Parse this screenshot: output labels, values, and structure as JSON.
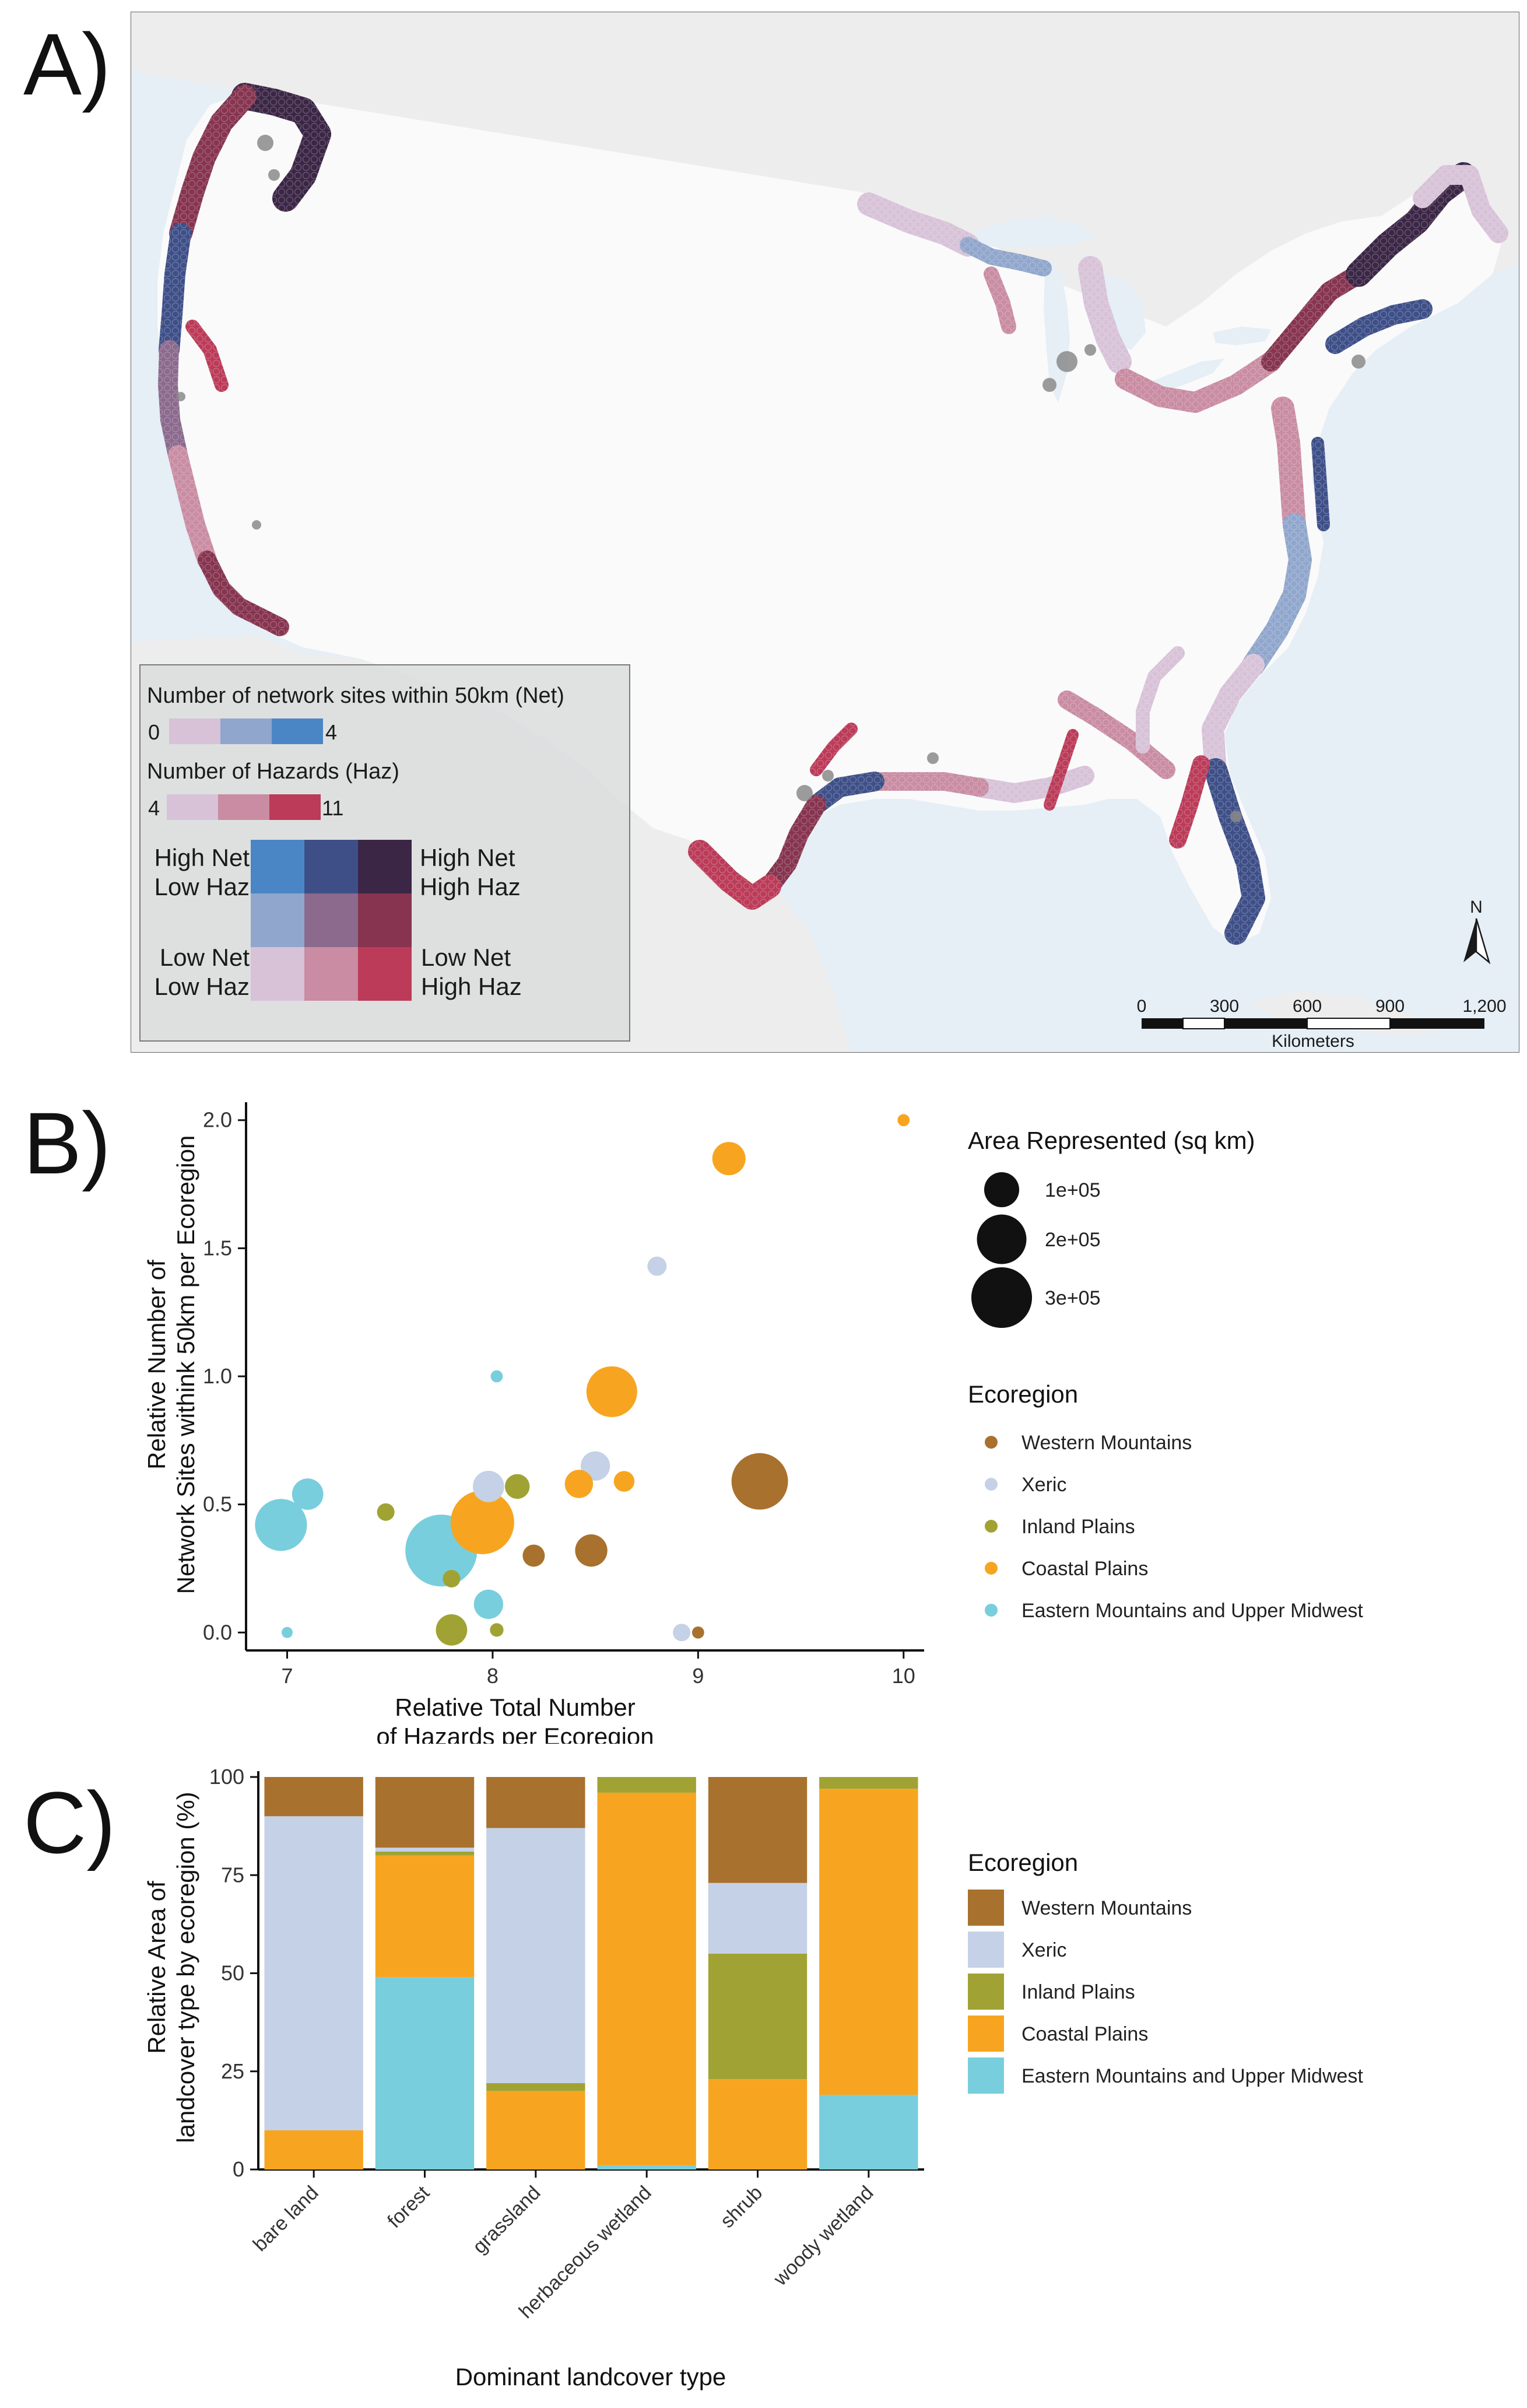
{
  "panels": {
    "a": "A)",
    "b": "B)",
    "c": "C)"
  },
  "colors": {
    "western": "#A8712E",
    "xeric": "#C5D1E6",
    "inland": "#A0A333",
    "coastal": "#F7A520",
    "eastern": "#78CEDC",
    "ocean": "#E6EEF6",
    "land": "#EEEEEE",
    "us_land": "#FAFAFA",
    "grid_cell_gray": "#8A8A8A",
    "bivariate": {
      "low_net_low_haz": "#D7C2D8",
      "low_net_mid_haz": "#C98CA2",
      "low_net_high_haz": "#BB3B58",
      "mid_net_low_haz": "#90A6CC",
      "mid_net_mid_haz": "#8B6A8E",
      "mid_net_high_haz": "#86344F",
      "high_net_low_haz": "#4A86C6",
      "high_net_mid_haz": "#3E4F88",
      "high_net_high_haz": "#3B2646"
    }
  },
  "map": {
    "legend": {
      "net_title": "Number of network sites within 50km (Net)",
      "net_min": "0",
      "net_max": "4",
      "haz_title": "Number of Hazards (Haz)",
      "haz_min": "4",
      "haz_max": "11",
      "high_net_low_haz_1": "High Net",
      "high_net_low_haz_2": "Low Haz",
      "high_net_high_haz_1": "High Net",
      "high_net_high_haz_2": "High Haz",
      "low_net_low_haz_1": "Low Net",
      "low_net_low_haz_2": "Low Haz",
      "low_net_high_haz_1": "Low Net",
      "low_net_high_haz_2": "High Haz"
    },
    "north_arrow_label": "N",
    "scale_bar": {
      "ticks": [
        "0",
        "300",
        "600",
        "900",
        "1,200"
      ],
      "unit": "Kilometers"
    }
  },
  "chart_data": [
    {
      "type": "scatter",
      "panel": "B",
      "xlabel": "Relative Total Number\nof Hazards per Ecoregion",
      "ylabel": "Relative Number of\nNetwork Sites withink 50km per Ecoregion",
      "xlim": [
        6.8,
        10.1
      ],
      "ylim": [
        -0.07,
        2.07
      ],
      "x_ticks": [
        7,
        8,
        9,
        10
      ],
      "y_ticks": [
        "0.0",
        "0.5",
        "1.0",
        "1.5",
        "2.0"
      ],
      "size_legend": {
        "title": "Area Represented (sq km)",
        "entries": [
          {
            "label": "1e+05",
            "value": 100000
          },
          {
            "label": "2e+05",
            "value": 200000
          },
          {
            "label": "3e+05",
            "value": 300000
          }
        ]
      },
      "color_legend": {
        "title": "Ecoregion",
        "entries": [
          "Western Mountains",
          "Xeric",
          "Inland Plains",
          "Coastal Plains",
          "Eastern Mountains and Upper Midwest"
        ]
      },
      "points": [
        {
          "series": "Western Mountains",
          "x": 9.3,
          "y": 0.59,
          "area": 260000
        },
        {
          "series": "Western Mountains",
          "x": 8.48,
          "y": 0.32,
          "area": 85000
        },
        {
          "series": "Western Mountains",
          "x": 8.2,
          "y": 0.3,
          "area": 40000
        },
        {
          "series": "Western Mountains",
          "x": 9.0,
          "y": 0.0,
          "area": 12000
        },
        {
          "series": "Xeric",
          "x": 8.8,
          "y": 1.43,
          "area": 30000
        },
        {
          "series": "Xeric",
          "x": 8.5,
          "y": 0.65,
          "area": 70000
        },
        {
          "series": "Xeric",
          "x": 7.98,
          "y": 0.57,
          "area": 80000
        },
        {
          "series": "Xeric",
          "x": 8.92,
          "y": 0.0,
          "area": 25000
        },
        {
          "series": "Inland Plains",
          "x": 7.48,
          "y": 0.47,
          "area": 25000
        },
        {
          "series": "Inland Plains",
          "x": 8.12,
          "y": 0.57,
          "area": 50000
        },
        {
          "series": "Inland Plains",
          "x": 7.8,
          "y": 0.21,
          "area": 25000
        },
        {
          "series": "Inland Plains",
          "x": 7.8,
          "y": 0.01,
          "area": 80000
        },
        {
          "series": "Inland Plains",
          "x": 8.02,
          "y": 0.01,
          "area": 15000
        },
        {
          "series": "Coastal Plains",
          "x": 10.0,
          "y": 2.0,
          "area": 12000
        },
        {
          "series": "Coastal Plains",
          "x": 9.15,
          "y": 1.85,
          "area": 90000
        },
        {
          "series": "Coastal Plains",
          "x": 8.58,
          "y": 0.94,
          "area": 210000
        },
        {
          "series": "Coastal Plains",
          "x": 8.42,
          "y": 0.58,
          "area": 65000
        },
        {
          "series": "Coastal Plains",
          "x": 8.64,
          "y": 0.59,
          "area": 35000
        },
        {
          "series": "Coastal Plains",
          "x": 7.95,
          "y": 0.43,
          "area": 330000
        },
        {
          "series": "Eastern Mountains and Upper Midwest",
          "x": 6.97,
          "y": 0.42,
          "area": 220000
        },
        {
          "series": "Eastern Mountains and Upper Midwest",
          "x": 7.1,
          "y": 0.54,
          "area": 80000
        },
        {
          "series": "Eastern Mountains and Upper Midwest",
          "x": 7.75,
          "y": 0.32,
          "area": 420000
        },
        {
          "series": "Eastern Mountains and Upper Midwest",
          "x": 7.98,
          "y": 0.11,
          "area": 70000
        },
        {
          "series": "Eastern Mountains and Upper Midwest",
          "x": 8.02,
          "y": 1.0,
          "area": 12000
        },
        {
          "series": "Eastern Mountains and Upper Midwest",
          "x": 7.0,
          "y": 0.0,
          "area": 10000
        }
      ]
    },
    {
      "type": "bar",
      "panel": "C",
      "stacked": true,
      "xlabel": "Dominant landcover type",
      "ylabel": "Relative Area of\nlandcover type by ecoregion (%)",
      "ylim": [
        0,
        100
      ],
      "y_ticks": [
        0,
        25,
        50,
        75,
        100
      ],
      "categories": [
        "bare land",
        "forest",
        "grassland",
        "herbaceous wetland",
        "shrub",
        "woody wetland"
      ],
      "legend_title": "Ecoregion",
      "series": [
        {
          "name": "Eastern Mountains and Upper Midwest",
          "values": [
            0,
            49,
            0,
            1,
            0,
            19
          ]
        },
        {
          "name": "Coastal Plains",
          "values": [
            10,
            31,
            20,
            95,
            23,
            78
          ]
        },
        {
          "name": "Inland Plains",
          "values": [
            0,
            1,
            2,
            4,
            32,
            3
          ]
        },
        {
          "name": "Xeric",
          "values": [
            80,
            1,
            65,
            0,
            18,
            0
          ]
        },
        {
          "name": "Western Mountains",
          "values": [
            10,
            18,
            13,
            0,
            27,
            0
          ]
        }
      ],
      "legend_order": [
        "Western Mountains",
        "Xeric",
        "Inland Plains",
        "Coastal Plains",
        "Eastern Mountains and Upper Midwest"
      ]
    }
  ]
}
